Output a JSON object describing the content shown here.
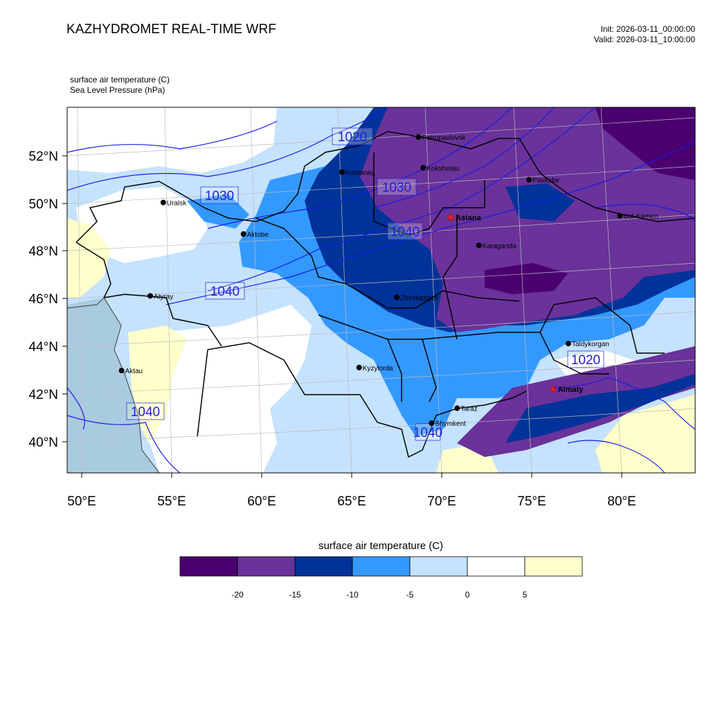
{
  "header": {
    "title": "KAZHYDROMET REAL-TIME WRF",
    "init": "Init: 2026-03-11_00:00:00",
    "valid": "Valid: 2026-03-11_10:00:00"
  },
  "variables": {
    "temperature": "surface air temperature   (C)",
    "pressure": "Sea Level Pressure   (hPa)"
  },
  "map": {
    "lon_ticks": [
      "50°E",
      "55°E",
      "60°E",
      "65°E",
      "70°E",
      "75°E",
      "80°E"
    ],
    "lat_ticks": [
      "52°N",
      "50°N",
      "48°N",
      "46°N",
      "44°N",
      "42°N",
      "40°N"
    ],
    "cities": [
      {
        "name": "Petropavlovsk",
        "lon": 68.5,
        "lat": 52.7
      },
      {
        "name": "Kostanay",
        "lon": 64.3,
        "lat": 51.3
      },
      {
        "name": "Kokshetau",
        "lon": 68.8,
        "lat": 51.4
      },
      {
        "name": "Uralsk",
        "lon": 54.4,
        "lat": 50.2
      },
      {
        "name": "Pavlodar",
        "lon": 74.7,
        "lat": 50.8
      },
      {
        "name": "Aktobe",
        "lon": 58.9,
        "lat": 48.8
      },
      {
        "name": "Ust-Kamen",
        "lon": 79.8,
        "lat": 49.2
      },
      {
        "name": "Karaganda",
        "lon": 72.0,
        "lat": 48.1
      },
      {
        "name": "Atyray",
        "lon": 53.8,
        "lat": 46.3
      },
      {
        "name": "Zheskazgan",
        "lon": 67.5,
        "lat": 46.0
      },
      {
        "name": "Taldykorgan",
        "lon": 77.1,
        "lat": 43.9
      },
      {
        "name": "Kyzylorda",
        "lon": 65.5,
        "lat": 43.1
      },
      {
        "name": "Aktau",
        "lon": 52.3,
        "lat": 43.2
      },
      {
        "name": "Taraz",
        "lon": 71.0,
        "lat": 41.3
      },
      {
        "name": "Shymkent",
        "lon": 69.6,
        "lat": 40.7
      }
    ],
    "capitals": [
      {
        "name": "Astana",
        "lon": 70.4,
        "lat": 49.3
      },
      {
        "name": "Almaty",
        "lon": 76.3,
        "lat": 42.0
      }
    ],
    "isobar_labels": [
      "1020",
      "1030",
      "1030",
      "1040",
      "1040",
      "1040",
      "1020",
      "1040"
    ]
  },
  "colorbar": {
    "title": "surface air temperature (C)",
    "colors": [
      "#4b0070",
      "#6a329a",
      "#003399",
      "#3399ff",
      "#c5e2ff",
      "#ffffff",
      "#ffffcc"
    ],
    "labels": [
      "-20",
      "-15",
      "-10",
      "-5",
      "0",
      "5"
    ]
  }
}
